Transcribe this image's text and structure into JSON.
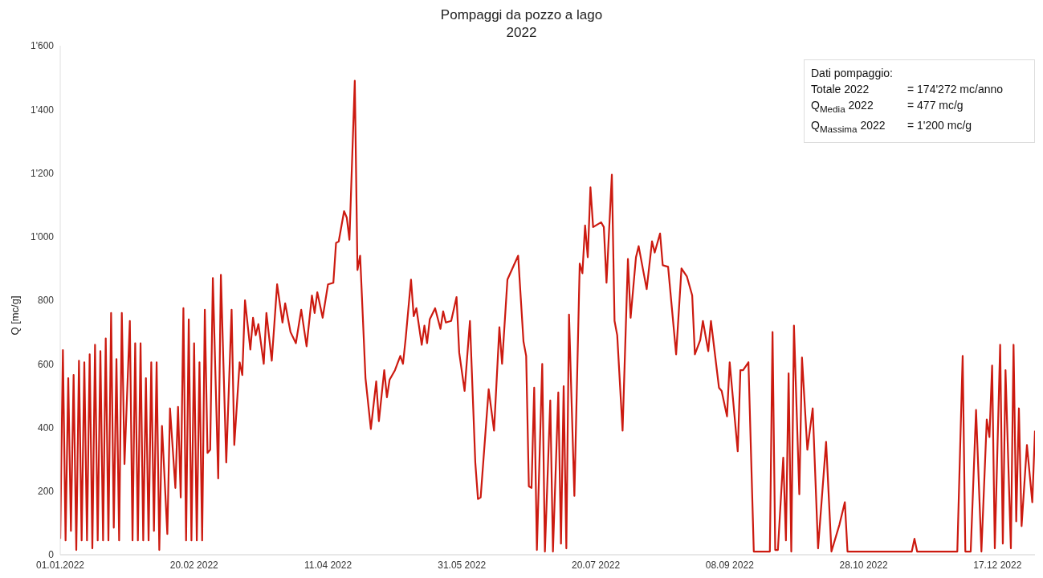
{
  "chart_data": {
    "type": "line",
    "title": "Pompaggi da pozzo a lago",
    "subtitle": "2022",
    "ylabel": "Q [mc/g]",
    "annotations": [
      "Dati pompaggio:",
      "Totale 2022",
      "= 174'272 mc/anno",
      "Q$_{Media}$ 2022",
      "= 477 mc/g",
      "Q$_{Massima}$ 2022",
      "= 1'200 mc/g"
    ],
    "xlim": [
      "2022-01-01",
      "2022-12-31"
    ],
    "xticks": [
      {
        "value": "2022-01-01",
        "label": "01.01.2022"
      },
      {
        "value": "2022-02-20",
        "label": "20.02 2022"
      },
      {
        "value": "2022-04-11",
        "label": "11.04 2022"
      },
      {
        "value": "2022-05-31",
        "label": "31.05 2022"
      },
      {
        "value": "2022-07-20",
        "label": "20.07 2022"
      },
      {
        "value": "2022-09-08",
        "label": "08.09 2022"
      },
      {
        "value": "2022-10-28",
        "label": "28.10 2022"
      },
      {
        "value": "2022-12-17",
        "label": "17.12 2022"
      }
    ],
    "ylim": [
      0,
      1600
    ],
    "yticks": [
      0,
      200,
      400,
      600,
      800,
      {
        "value": 1000,
        "label": "1'000"
      },
      {
        "value": 1200,
        "label": "1'200"
      },
      {
        "value": 1400,
        "label": "1'400"
      },
      {
        "value": 1600,
        "label": "1'600"
      }
    ],
    "grid": false,
    "legend": false,
    "marker": "none",
    "line_style": "solid",
    "series": [
      {
        "color": "#cc1a10",
        "x": [
          "2022-01-01",
          "2022-01-02",
          "2022-01-03",
          "2022-01-04",
          "2022-01-05",
          "2022-01-06",
          "2022-01-07",
          "2022-01-08",
          "2022-01-09",
          "2022-01-10",
          "2022-01-11",
          "2022-01-12",
          "2022-01-13",
          "2022-01-14",
          "2022-01-15",
          "2022-01-16",
          "2022-01-17",
          "2022-01-18",
          "2022-01-19",
          "2022-01-20",
          "2022-01-21",
          "2022-01-22",
          "2022-01-23",
          "2022-01-24",
          "2022-01-25",
          "2022-01-27",
          "2022-01-28",
          "2022-01-29",
          "2022-01-30",
          "2022-01-31",
          "2022-02-01",
          "2022-02-02",
          "2022-02-03",
          "2022-02-04",
          "2022-02-05",
          "2022-02-06",
          "2022-02-07",
          "2022-02-08",
          "2022-02-10",
          "2022-02-11",
          "2022-02-13",
          "2022-02-14",
          "2022-02-15",
          "2022-02-16",
          "2022-02-17",
          "2022-02-18",
          "2022-02-19",
          "2022-02-20",
          "2022-02-21",
          "2022-02-22",
          "2022-02-23",
          "2022-02-24",
          "2022-02-25",
          "2022-02-26",
          "2022-02-27",
          "2022-03-01",
          "2022-03-02",
          "2022-03-04",
          "2022-03-06",
          "2022-03-07",
          "2022-03-09",
          "2022-03-10",
          "2022-03-11",
          "2022-03-13",
          "2022-03-14",
          "2022-03-15",
          "2022-03-16",
          "2022-03-18",
          "2022-03-19",
          "2022-03-21",
          "2022-03-23",
          "2022-03-25",
          "2022-03-26",
          "2022-03-28",
          "2022-03-30",
          "2022-04-01",
          "2022-04-03",
          "2022-04-05",
          "2022-04-06",
          "2022-04-07",
          "2022-04-09",
          "2022-04-11",
          "2022-04-13",
          "2022-04-14",
          "2022-04-15",
          "2022-04-17",
          "2022-04-18",
          "2022-04-19",
          "2022-04-21",
          "2022-04-22",
          "2022-04-23",
          "2022-04-25",
          "2022-04-27",
          "2022-04-29",
          "2022-04-30",
          "2022-05-02",
          "2022-05-03",
          "2022-05-04",
          "2022-05-06",
          "2022-05-08",
          "2022-05-09",
          "2022-05-10",
          "2022-05-12",
          "2022-05-13",
          "2022-05-14",
          "2022-05-16",
          "2022-05-17",
          "2022-05-18",
          "2022-05-19",
          "2022-05-21",
          "2022-05-23",
          "2022-05-24",
          "2022-05-25",
          "2022-05-27",
          "2022-05-29",
          "2022-05-30",
          "2022-06-01",
          "2022-06-03",
          "2022-06-05",
          "2022-06-06",
          "2022-06-07",
          "2022-06-10",
          "2022-06-12",
          "2022-06-14",
          "2022-06-15",
          "2022-06-17",
          "2022-06-21",
          "2022-06-23",
          "2022-06-24",
          "2022-06-25",
          "2022-06-26",
          "2022-06-27",
          "2022-06-28",
          "2022-06-30",
          "2022-07-01",
          "2022-07-03",
          "2022-07-04",
          "2022-07-06",
          "2022-07-07",
          "2022-07-08",
          "2022-07-09",
          "2022-07-10",
          "2022-07-12",
          "2022-07-14",
          "2022-07-15",
          "2022-07-16",
          "2022-07-17",
          "2022-07-18",
          "2022-07-19",
          "2022-07-22",
          "2022-07-23",
          "2022-07-24",
          "2022-07-26",
          "2022-07-27",
          "2022-07-28",
          "2022-07-30",
          "2022-08-01",
          "2022-08-02",
          "2022-08-04",
          "2022-08-05",
          "2022-08-08",
          "2022-08-10",
          "2022-08-11",
          "2022-08-13",
          "2022-08-14",
          "2022-08-16",
          "2022-08-19",
          "2022-08-21",
          "2022-08-23",
          "2022-08-25",
          "2022-08-26",
          "2022-08-28",
          "2022-08-29",
          "2022-08-31",
          "2022-09-01",
          "2022-09-04",
          "2022-09-05",
          "2022-09-07",
          "2022-09-08",
          "2022-09-11",
          "2022-09-12",
          "2022-09-13",
          "2022-09-15",
          "2022-09-17",
          "2022-09-23",
          "2022-09-24",
          "2022-09-25",
          "2022-09-26",
          "2022-09-28",
          "2022-09-29",
          "2022-09-30",
          "2022-10-01",
          "2022-10-02",
          "2022-10-04",
          "2022-10-05",
          "2022-10-07",
          "2022-10-09",
          "2022-10-11",
          "2022-10-14",
          "2022-10-16",
          "2022-10-19",
          "2022-10-21",
          "2022-10-22",
          "2022-11-15",
          "2022-11-16",
          "2022-11-17",
          "2022-12-02",
          "2022-12-04",
          "2022-12-05",
          "2022-12-07",
          "2022-12-09",
          "2022-12-11",
          "2022-12-13",
          "2022-12-14",
          "2022-12-15",
          "2022-12-16",
          "2022-12-18",
          "2022-12-19",
          "2022-12-20",
          "2022-12-22",
          "2022-12-23",
          "2022-12-24",
          "2022-12-25",
          "2022-12-26",
          "2022-12-28",
          "2022-12-30",
          "2022-12-31"
        ],
        "values": [
          50,
          643,
          45,
          555,
          75,
          565,
          15,
          610,
          45,
          605,
          45,
          630,
          20,
          660,
          45,
          640,
          45,
          680,
          45,
          760,
          85,
          615,
          45,
          760,
          285,
          735,
          45,
          665,
          45,
          665,
          45,
          555,
          45,
          605,
          75,
          605,
          15,
          405,
          65,
          460,
          210,
          465,
          180,
          775,
          45,
          740,
          45,
          665,
          45,
          605,
          45,
          770,
          320,
          330,
          870,
          240,
          880,
          290,
          770,
          345,
          605,
          565,
          800,
          645,
          745,
          690,
          725,
          600,
          760,
          610,
          850,
          730,
          790,
          700,
          665,
          770,
          655,
          815,
          760,
          825,
          745,
          850,
          855,
          980,
          985,
          1080,
          1060,
          990,
          1490,
          895,
          940,
          555,
          395,
          545,
          420,
          580,
          495,
          550,
          580,
          625,
          600,
          680,
          865,
          750,
          775,
          660,
          720,
          665,
          740,
          775,
          710,
          765,
          730,
          735,
          810,
          635,
          515,
          735,
          290,
          175,
          180,
          520,
          390,
          715,
          600,
          865,
          940,
          670,
          625,
          215,
          210,
          525,
          15,
          600,
          10,
          485,
          10,
          510,
          35,
          530,
          20,
          755,
          185,
          915,
          885,
          1035,
          935,
          1155,
          1030,
          1045,
          1030,
          855,
          1195,
          735,
          690,
          390,
          930,
          745,
          935,
          970,
          835,
          985,
          950,
          1010,
          910,
          905,
          630,
          900,
          875,
          815,
          630,
          675,
          735,
          640,
          735,
          525,
          515,
          435,
          605,
          325,
          580,
          580,
          605,
          10,
          10,
          700,
          15,
          15,
          305,
          45,
          570,
          10,
          720,
          190,
          620,
          330,
          460,
          20,
          355,
          10,
          95,
          165,
          10,
          10,
          50,
          10,
          10,
          625,
          10,
          10,
          455,
          10,
          425,
          370,
          595,
          20,
          660,
          35,
          580,
          20,
          660,
          105,
          460,
          90,
          345,
          165,
          390
        ]
      }
    ]
  }
}
